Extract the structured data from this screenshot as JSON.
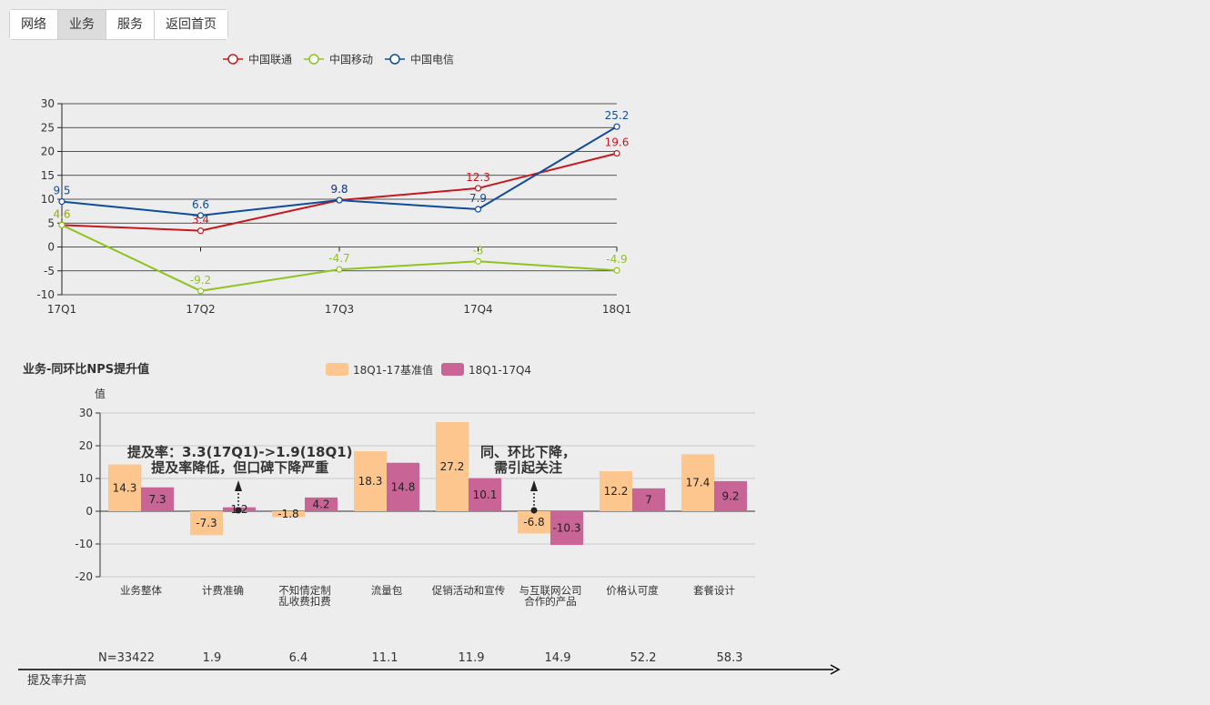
{
  "tabs": [
    "网络",
    "业务",
    "服务",
    "返回首页"
  ],
  "active_tab": 1,
  "colors": {
    "unicom": "#c8161d",
    "mobile": "#8fc31f",
    "telecom": "#0f4c9a",
    "base": "#fdc68e",
    "q4": "#c86496"
  },
  "chart_data": [
    {
      "type": "line",
      "categories": [
        "17Q1",
        "17Q2",
        "17Q3",
        "17Q4",
        "18Q1"
      ],
      "series": [
        {
          "name": "中国联通",
          "values": [
            4.6,
            3.4,
            9.8,
            12.3,
            19.6
          ]
        },
        {
          "name": "中国移动",
          "values": [
            4.6,
            -9.2,
            -4.7,
            -3,
            -4.9
          ]
        },
        {
          "name": "中国电信",
          "values": [
            9.5,
            6.6,
            9.8,
            7.9,
            25.2
          ]
        }
      ],
      "ylim": [
        -10,
        30
      ],
      "yticks": [
        -10,
        -5,
        0,
        5,
        10,
        15,
        20,
        25,
        30
      ],
      "legend": "top"
    },
    {
      "type": "bar",
      "title": "业务-同环比NPS提升值",
      "ylabel": "值",
      "categories": [
        "业务整体",
        "计费准确",
        "不知情定制乱收费扣费",
        "流量包",
        "促销活动和宣传",
        "与互联网公司合作的产品",
        "价格认可度",
        "套餐设计"
      ],
      "category_lines": [
        [
          "业务整体"
        ],
        [
          "计费准确"
        ],
        [
          "不知情定制",
          "乱收费扣费"
        ],
        [
          "流量包"
        ],
        [
          "促销活动和宣传"
        ],
        [
          "与互联网公司",
          "合作的产品"
        ],
        [
          "价格认可度"
        ],
        [
          "套餐设计"
        ]
      ],
      "series": [
        {
          "name": "18Q1-17基准值",
          "values": [
            14.3,
            -7.3,
            -1.8,
            18.3,
            27.2,
            -6.8,
            12.2,
            17.4
          ]
        },
        {
          "name": "18Q1-17Q4",
          "values": [
            7.3,
            1.2,
            4.2,
            14.8,
            10.1,
            -10.3,
            7,
            9.2
          ]
        }
      ],
      "ylim": [
        -20,
        30
      ],
      "yticks": [
        -20,
        -10,
        0,
        10,
        20,
        30
      ],
      "legend": "top"
    }
  ],
  "annotations": [
    {
      "line1": "提及率：3.3(17Q1)->1.9(18Q1)",
      "line2": "提及率降低，但口碑下降严重"
    },
    {
      "line1": "同、环比下降，",
      "line2": "需引起关注"
    }
  ],
  "bottom": {
    "n_values": [
      "N=33422",
      "1.9",
      "6.4",
      "11.1",
      "11.9",
      "14.9",
      "52.2",
      "58.3"
    ],
    "axis_label": "提及率升高"
  }
}
